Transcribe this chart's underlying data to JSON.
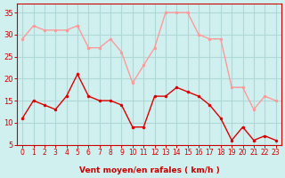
{
  "x": [
    0,
    1,
    2,
    3,
    4,
    5,
    6,
    7,
    8,
    9,
    10,
    11,
    12,
    13,
    14,
    15,
    16,
    17,
    18,
    19,
    20,
    21,
    22,
    23
  ],
  "wind_avg": [
    11,
    15,
    14,
    13,
    16,
    21,
    16,
    15,
    15,
    14,
    9,
    9,
    16,
    16,
    18,
    17,
    16,
    14,
    11,
    6,
    9,
    6,
    7,
    6
  ],
  "wind_gust": [
    29,
    32,
    31,
    31,
    31,
    32,
    27,
    27,
    29,
    26,
    19,
    23,
    27,
    35,
    35,
    35,
    30,
    29,
    29,
    18,
    18,
    13,
    16,
    15
  ],
  "avg_color": "#dd0000",
  "gust_color": "#ff9999",
  "bg_color": "#d0f0f0",
  "grid_color": "#b0d8d8",
  "xlabel": "Vent moyen/en rafales ( km/h )",
  "xlabel_color": "#cc0000",
  "tick_color": "#cc0000",
  "arrow_color": "#cc0000",
  "ylim": [
    5,
    37
  ],
  "yticks": [
    5,
    10,
    15,
    20,
    25,
    30,
    35
  ],
  "xticks": [
    0,
    1,
    2,
    3,
    4,
    5,
    6,
    7,
    8,
    9,
    10,
    11,
    12,
    13,
    14,
    15,
    16,
    17,
    18,
    19,
    20,
    21,
    22,
    23
  ]
}
